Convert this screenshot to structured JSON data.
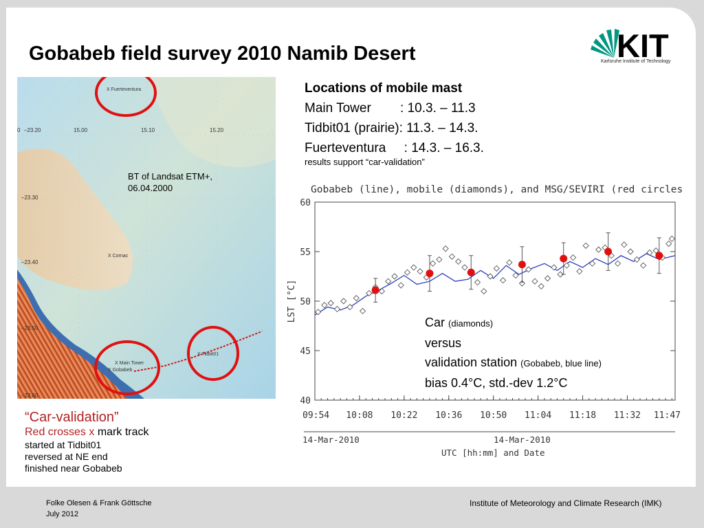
{
  "title": "Gobabeb field survey 2010 Namib Desert",
  "logo": {
    "text": "KIT",
    "subtitle": "Karlsruhe Institute of Technology",
    "color": "#009682"
  },
  "map": {
    "caption_line1": "BT of Landsat ETM+,",
    "caption_line2": "06.04.2000",
    "labels": {
      "fuerteventura": "X Fuerteventura",
      "cornac": "X Cornac",
      "main_tower": "X Main Tower",
      "gobabeb": "X Gobabeb",
      "tidbit01": "X Tidbit01"
    },
    "lon_ticks": [
      "0",
      "–23.20",
      "15.00",
      "15.10",
      "15.20"
    ],
    "lat_ticks": [
      "–23.30",
      "–23.40",
      "–23.50",
      "–23.60"
    ],
    "circle_color": "#e01010"
  },
  "locations": {
    "heading": "Locations of mobile mast",
    "rows": [
      "Main Tower        : 10.3. – 11.3",
      "Tidbit01 (prairie): 11.3. – 14.3.",
      "Fuerteventura     : 14.3. – 16.3."
    ],
    "note": "results support “car-validation”"
  },
  "chart_data": {
    "type": "line",
    "title": "Gobabeb (line), mobile (diamonds), and MSG/SEVIRI (red circles)",
    "ylabel": "LST [°C]",
    "xlabel": "UTC [hh:mm] and Date",
    "date_left": "14-Mar-2010",
    "date_center": "14-Mar-2010",
    "ylim": [
      40,
      60
    ],
    "yticks": [
      40,
      45,
      50,
      55,
      60
    ],
    "xlim": [
      "09:54",
      "11:47"
    ],
    "xticks": [
      "09:54",
      "10:08",
      "10:22",
      "10:36",
      "10:50",
      "11:04",
      "11:18",
      "11:32",
      "11:47"
    ],
    "grid": false,
    "series": [
      {
        "name": "Gobabeb (line)",
        "color": "#2a3fbf",
        "points": [
          [
            "09:54",
            48.6
          ],
          [
            "09:58",
            49.4
          ],
          [
            "10:02",
            49.1
          ],
          [
            "10:06",
            49.6
          ],
          [
            "10:10",
            50.5
          ],
          [
            "10:14",
            51.1
          ],
          [
            "10:18",
            51.8
          ],
          [
            "10:22",
            52.6
          ],
          [
            "10:26",
            51.7
          ],
          [
            "10:30",
            52.0
          ],
          [
            "10:34",
            52.8
          ],
          [
            "10:38",
            52.0
          ],
          [
            "10:42",
            52.2
          ],
          [
            "10:46",
            53.1
          ],
          [
            "10:50",
            52.3
          ],
          [
            "10:54",
            53.6
          ],
          [
            "10:58",
            52.7
          ],
          [
            "11:02",
            53.3
          ],
          [
            "11:06",
            53.8
          ],
          [
            "11:10",
            53.1
          ],
          [
            "11:14",
            54.0
          ],
          [
            "11:18",
            53.4
          ],
          [
            "11:22",
            54.3
          ],
          [
            "11:26",
            53.7
          ],
          [
            "11:30",
            54.6
          ],
          [
            "11:34",
            54.0
          ],
          [
            "11:38",
            54.8
          ],
          [
            "11:42",
            54.2
          ],
          [
            "11:47",
            54.6
          ]
        ]
      },
      {
        "name": "mobile (diamonds)",
        "color": "#555555",
        "points": [
          [
            "09:55",
            48.9
          ],
          [
            "09:57",
            49.6
          ],
          [
            "09:59",
            49.8
          ],
          [
            "10:01",
            49.2
          ],
          [
            "10:03",
            50.0
          ],
          [
            "10:05",
            49.4
          ],
          [
            "10:07",
            50.3
          ],
          [
            "10:09",
            49.0
          ],
          [
            "10:11",
            50.8
          ],
          [
            "10:13",
            51.4
          ],
          [
            "10:15",
            51.0
          ],
          [
            "10:17",
            52.0
          ],
          [
            "10:19",
            52.5
          ],
          [
            "10:21",
            51.6
          ],
          [
            "10:23",
            52.9
          ],
          [
            "10:25",
            53.4
          ],
          [
            "10:27",
            53.0
          ],
          [
            "10:29",
            52.4
          ],
          [
            "10:31",
            53.8
          ],
          [
            "10:33",
            54.2
          ],
          [
            "10:35",
            55.3
          ],
          [
            "10:37",
            54.5
          ],
          [
            "10:39",
            54.0
          ],
          [
            "10:41",
            53.4
          ],
          [
            "10:43",
            52.8
          ],
          [
            "10:45",
            51.9
          ],
          [
            "10:47",
            51.0
          ],
          [
            "10:49",
            52.5
          ],
          [
            "10:51",
            53.3
          ],
          [
            "10:53",
            52.1
          ],
          [
            "10:55",
            53.9
          ],
          [
            "10:57",
            52.6
          ],
          [
            "10:59",
            51.8
          ],
          [
            "11:01",
            53.2
          ],
          [
            "11:03",
            52.0
          ],
          [
            "11:05",
            51.5
          ],
          [
            "11:07",
            52.3
          ],
          [
            "11:09",
            53.4
          ],
          [
            "11:11",
            52.7
          ],
          [
            "11:13",
            53.6
          ],
          [
            "11:15",
            54.4
          ],
          [
            "11:17",
            53.0
          ],
          [
            "11:19",
            55.6
          ],
          [
            "11:21",
            53.8
          ],
          [
            "11:23",
            55.2
          ],
          [
            "11:25",
            55.4
          ],
          [
            "11:27",
            54.6
          ],
          [
            "11:29",
            53.8
          ],
          [
            "11:31",
            55.7
          ],
          [
            "11:33",
            55.0
          ],
          [
            "11:35",
            54.2
          ],
          [
            "11:37",
            53.6
          ],
          [
            "11:39",
            54.9
          ],
          [
            "11:41",
            55.1
          ],
          [
            "11:43",
            54.4
          ],
          [
            "11:45",
            55.8
          ],
          [
            "11:46",
            56.3
          ]
        ]
      },
      {
        "name": "MSG/SEVIRI (red circles)",
        "color": "#e01010",
        "points": [
          [
            "10:13",
            51.1
          ],
          [
            "10:30",
            52.8
          ],
          [
            "10:43",
            52.9
          ],
          [
            "10:59",
            53.7
          ],
          [
            "11:12",
            54.3
          ],
          [
            "11:26",
            55.0
          ],
          [
            "11:42",
            54.6
          ]
        ],
        "errors": [
          1.2,
          1.8,
          1.7,
          1.8,
          1.6,
          1.9,
          1.8
        ]
      }
    ]
  },
  "annotation": {
    "line1": "Car",
    "line1_small": "(diamonds)",
    "line2": "versus",
    "line3": "validation station",
    "line3_small": "(Gobabeb, blue line)",
    "line4": "bias 0.4°C, std.-dev 1.2°C"
  },
  "car_validation": {
    "title": "“Car-validation”",
    "line1_red": "Red crosses x",
    "line1_rest": " mark track",
    "line2": "started at Tidbit01",
    "line3": "reversed at NE end",
    "line4": "finished near Gobabeb"
  },
  "footer": {
    "authors": "Folke Olesen & Frank Göttsche",
    "date": "July 2012",
    "institute": "Institute of Meteorology and Climate Research (IMK)"
  }
}
